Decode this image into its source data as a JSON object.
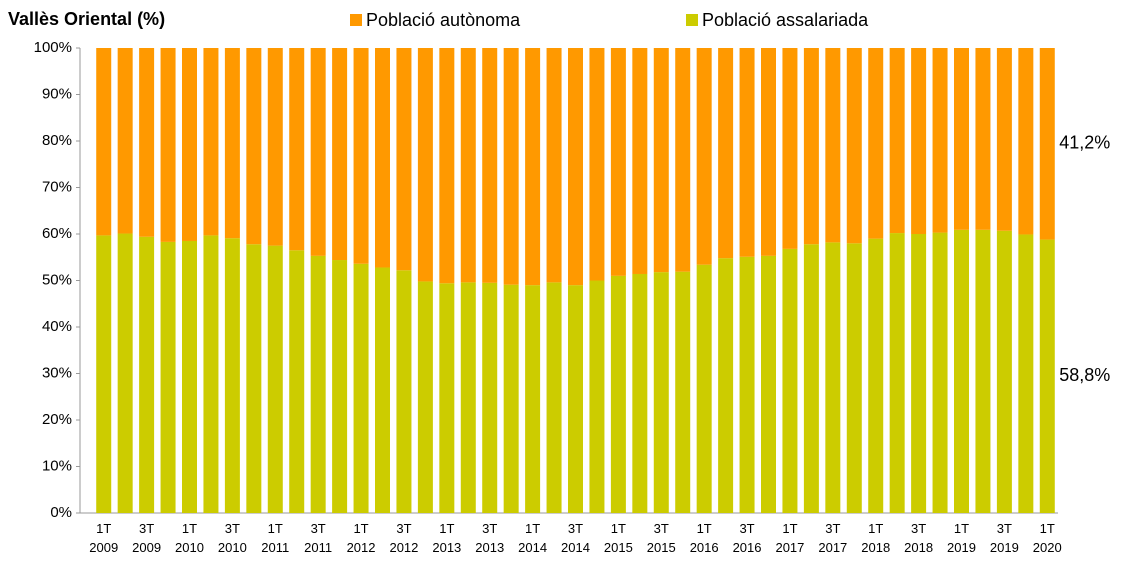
{
  "chart_data": {
    "type": "stacked_bar",
    "title": "Vallès Oriental (%)",
    "categories": [
      "1T\n2009",
      null,
      "3T\n2009",
      null,
      "1T\n2010",
      null,
      "3T\n2010",
      null,
      "1T\n2011",
      null,
      "3T\n2011",
      null,
      "1T\n2012",
      null,
      "3T\n2012",
      null,
      "1T\n2013",
      null,
      "3T\n2013",
      null,
      "1T\n2014",
      null,
      "3T\n2014",
      null,
      "1T\n2015",
      null,
      "3T\n2015",
      null,
      "1T\n2016",
      null,
      "3T\n2016",
      null,
      "1T\n2017",
      null,
      "3T\n2017",
      null,
      "1T\n2018",
      null,
      "3T\n2018",
      null,
      "1T\n2019",
      null,
      "3T\n2019",
      null,
      "1T\n2020"
    ],
    "series": [
      {
        "name": "Població autònoma",
        "color": "#ff9900",
        "values": [
          40.3,
          39.9,
          40.6,
          41.7,
          41.5,
          40.3,
          40.9,
          42.2,
          42.5,
          43.5,
          44.7,
          45.6,
          46.4,
          47.2,
          47.8,
          50.2,
          50.6,
          50.4,
          50.5,
          50.9,
          51.0,
          50.4,
          51.0,
          50.0,
          49.0,
          48.6,
          48.2,
          48.1,
          46.6,
          45.2,
          44.9,
          44.7,
          43.2,
          42.2,
          41.8,
          42.0,
          41.0,
          39.8,
          40.0,
          39.7,
          39.1,
          39.1,
          39.3,
          40.1,
          41.2
        ],
        "value_labels": [
          null,
          null,
          null,
          null,
          null,
          null,
          null,
          null,
          null,
          null,
          null,
          null,
          null,
          null,
          null,
          null,
          null,
          null,
          null,
          null,
          null,
          null,
          null,
          null,
          null,
          null,
          null,
          null,
          null,
          null,
          null,
          null,
          null,
          null,
          null,
          null,
          null,
          null,
          null,
          null,
          null,
          null,
          null,
          null,
          "41,2%"
        ]
      },
      {
        "name": "Població assalariada",
        "color": "#cccc00",
        "values": [
          59.7,
          60.1,
          59.4,
          58.3,
          58.5,
          59.7,
          59.1,
          57.8,
          57.5,
          56.5,
          55.3,
          54.4,
          53.6,
          52.8,
          52.2,
          49.8,
          49.4,
          49.6,
          49.5,
          49.1,
          49.0,
          49.6,
          49.0,
          50.0,
          51.0,
          51.4,
          51.8,
          51.9,
          53.4,
          54.8,
          55.1,
          55.3,
          56.8,
          57.8,
          58.2,
          58.0,
          59.0,
          60.2,
          60.0,
          60.3,
          60.9,
          60.9,
          60.7,
          59.9,
          58.8
        ],
        "value_labels": [
          null,
          null,
          null,
          null,
          null,
          null,
          null,
          null,
          null,
          null,
          null,
          null,
          null,
          null,
          null,
          null,
          null,
          null,
          null,
          null,
          null,
          null,
          null,
          null,
          null,
          null,
          null,
          null,
          null,
          null,
          null,
          null,
          null,
          null,
          null,
          null,
          null,
          null,
          null,
          null,
          null,
          null,
          null,
          null,
          "58,8%"
        ]
      }
    ],
    "ylim": [
      0,
      100
    ],
    "yticks": [
      {
        "value": 0,
        "label": "0%"
      },
      {
        "value": 10,
        "label": "10%"
      },
      {
        "value": 20,
        "label": "20%"
      },
      {
        "value": 30,
        "label": "30%"
      },
      {
        "value": 40,
        "label": "40%"
      },
      {
        "value": 50,
        "label": "50%"
      },
      {
        "value": 60,
        "label": "60%"
      },
      {
        "value": 70,
        "label": "70%"
      },
      {
        "value": 80,
        "label": "80%"
      },
      {
        "value": 90,
        "label": "90%"
      },
      {
        "value": {
          "value": 100
        },
        "label": "100%"
      }
    ]
  }
}
